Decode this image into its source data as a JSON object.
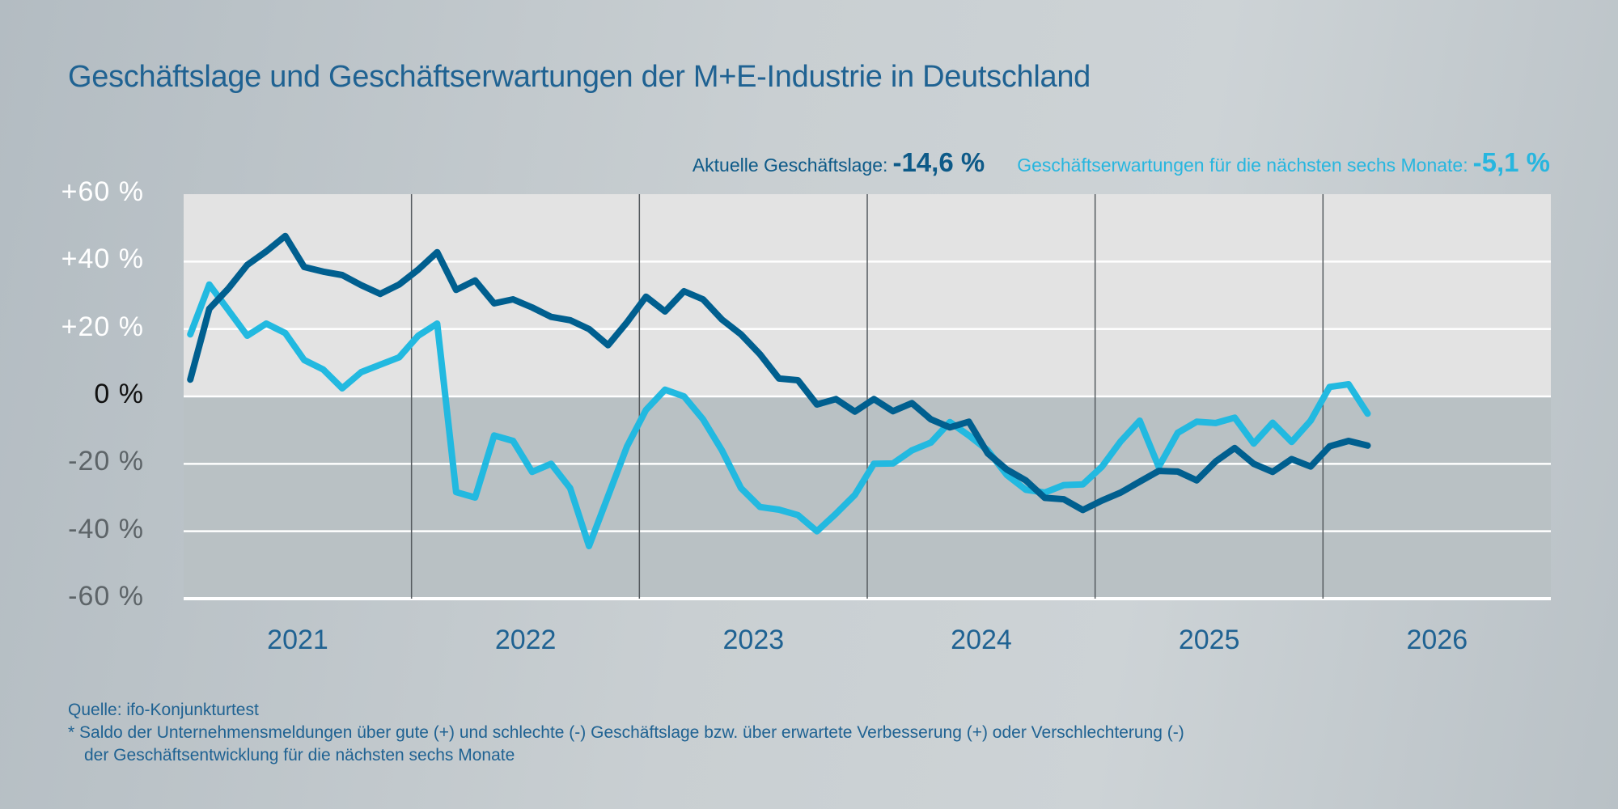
{
  "title": "Geschäftslage und Geschäftserwartungen der M+E-Industrie in Deutschland",
  "legend": {
    "current_label": "Aktuelle Geschäftslage:",
    "current_value": "-14,6 %",
    "expect_label": "Geschäftserwartungen für die nächsten sechs Monate:",
    "expect_value": "-5,1 %"
  },
  "footer": {
    "source": "Quelle: ifo-Konjunkturtest",
    "note_line1": "*  Saldo der Unternehmensmeldungen über gute (+) und schlechte (-) Geschäftslage bzw. über erwartete Verbesserung (+) oder Verschlechterung (-)",
    "note_line2": "der Geschäftsentwicklung für die nächsten sechs Monate"
  },
  "chart_data": {
    "type": "line",
    "title": "Geschäftslage und Geschäftserwartungen der M+E-Industrie in Deutschland",
    "xlabel": "",
    "ylabel": "",
    "ylim": [
      -60,
      60
    ],
    "yticks": [
      "+60 %",
      "+40 %",
      "+20 %",
      "0 %",
      "-20 %",
      "-40 %",
      "-60 %"
    ],
    "ytick_values": [
      60,
      40,
      20,
      0,
      -20,
      -40,
      -60
    ],
    "xticks": [
      "2021",
      "2022",
      "2023",
      "2024",
      "2025",
      "2026"
    ],
    "x_start": "2021-01",
    "x_end": "2026-03",
    "grid": "horizontal",
    "colors": {
      "current": "#005f8f",
      "expectations": "#22b9e0",
      "positive_area": "#e3e3e3",
      "negative_area": "#b9c1c4"
    },
    "series": [
      {
        "name": "Aktuelle Geschäftslage",
        "values": [
          5,
          26,
          32,
          39,
          43,
          47.6,
          38.4,
          37,
          36,
          33,
          30.4,
          33.2,
          37.6,
          42.8,
          31.6,
          34.4,
          27.6,
          28.8,
          26.4,
          23.6,
          22.6,
          20,
          15.2,
          22,
          29.6,
          25.2,
          31.2,
          28.8,
          22.8,
          18.4,
          12.5,
          5.3,
          4.8,
          -2.4,
          -0.8,
          -4.5,
          -0.8,
          -4.4,
          -2,
          -6.8,
          -9.2,
          -7.5,
          -16.9,
          -21.7,
          -24.9,
          -30.1,
          -30.5,
          -33.7,
          -30.9,
          -28.5,
          -25.3,
          -22.1,
          -22.3,
          -24.9,
          -19.3,
          -15.3,
          -20,
          -22.4,
          -18.6,
          -20.8,
          -14.8,
          -13.2,
          -14.6
        ]
      },
      {
        "name": "Geschäftserwartungen für die nächsten sechs Monate",
        "values": [
          18.4,
          33.2,
          25.6,
          18,
          21.6,
          18.8,
          10.8,
          8,
          2.4,
          7.2,
          9.4,
          11.6,
          18,
          21.6,
          -28.4,
          -30,
          -11.6,
          -13.2,
          -22.4,
          -20,
          -27.2,
          -44.4,
          -29.6,
          -14.8,
          -4,
          2,
          0,
          -6.8,
          -16,
          -27.2,
          -32.8,
          -33.6,
          -35.2,
          -40,
          -34.8,
          -29.2,
          -20,
          -19.9,
          -16,
          -13.7,
          -7.6,
          -11.6,
          -16,
          -23.3,
          -27.7,
          -28.5,
          -26.3,
          -26.1,
          -20.9,
          -13.3,
          -7.2,
          -20.9,
          -10.8,
          -7.5,
          -7.9,
          -6.3,
          -14,
          -7.8,
          -13.5,
          -7.2,
          2.8,
          3.6,
          -5.1
        ]
      }
    ]
  }
}
